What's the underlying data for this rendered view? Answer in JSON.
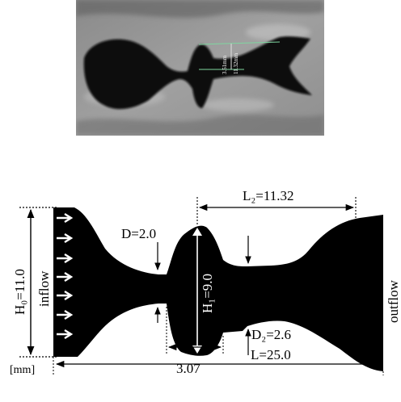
{
  "photo": {
    "measure_short": "3.51mm",
    "measure_long": "11.32mm"
  },
  "schematic": {
    "unit": "[mm]",
    "labels": {
      "H0": "H₀=11.0",
      "inflow": "inflow",
      "D": "D=2.0",
      "L2": "L₂=11.32",
      "H1": "H₁=9.0",
      "D2": "D₂=2.6",
      "width": "3.07",
      "L": "L=25.0",
      "outflow": "outflow"
    }
  }
}
